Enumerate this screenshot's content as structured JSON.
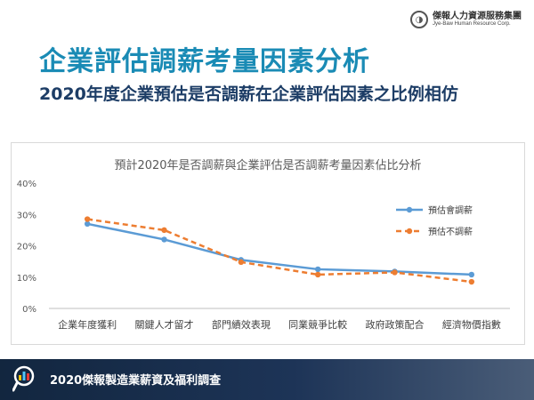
{
  "header": {
    "logo_cn": "傑報人力資源服務集團",
    "logo_en": "Jye-Baw Human Resource Corp."
  },
  "slide": {
    "title": "企業評估調薪考量因素分析",
    "subtitle": "2020年度企業預估是否調薪在企業評估因素之比例相仿"
  },
  "footer": {
    "text": "2020傑報製造業薪資及福利調查",
    "icon": "magnifier-bar-chart-icon"
  },
  "colors": {
    "title": "#1a8bb5",
    "subtitle": "#1d3d66",
    "series_1": "#5b9bd5",
    "series_2": "#ed7d31"
  },
  "chart_data": {
    "type": "line",
    "title": "預計2020年是否調薪與企業評估是否調薪考量因素佔比分析",
    "categories": [
      "企業年度獲利",
      "關鍵人才留才",
      "部門績效表現",
      "同業競爭比較",
      "政府政策配合",
      "經濟物價指數"
    ],
    "series": [
      {
        "name": "預估會調薪",
        "values": [
          0.27,
          0.22,
          0.155,
          0.125,
          0.118,
          0.108
        ],
        "style": "solid",
        "color": "#5b9bd5"
      },
      {
        "name": "預估不調薪",
        "values": [
          0.285,
          0.25,
          0.148,
          0.108,
          0.115,
          0.085
        ],
        "style": "dashed",
        "color": "#ed7d31"
      }
    ],
    "ylim": [
      0,
      0.4
    ],
    "yticks": [
      "0%",
      "10%",
      "20%",
      "30%",
      "40%"
    ],
    "grid": false,
    "legend_position": "right"
  }
}
